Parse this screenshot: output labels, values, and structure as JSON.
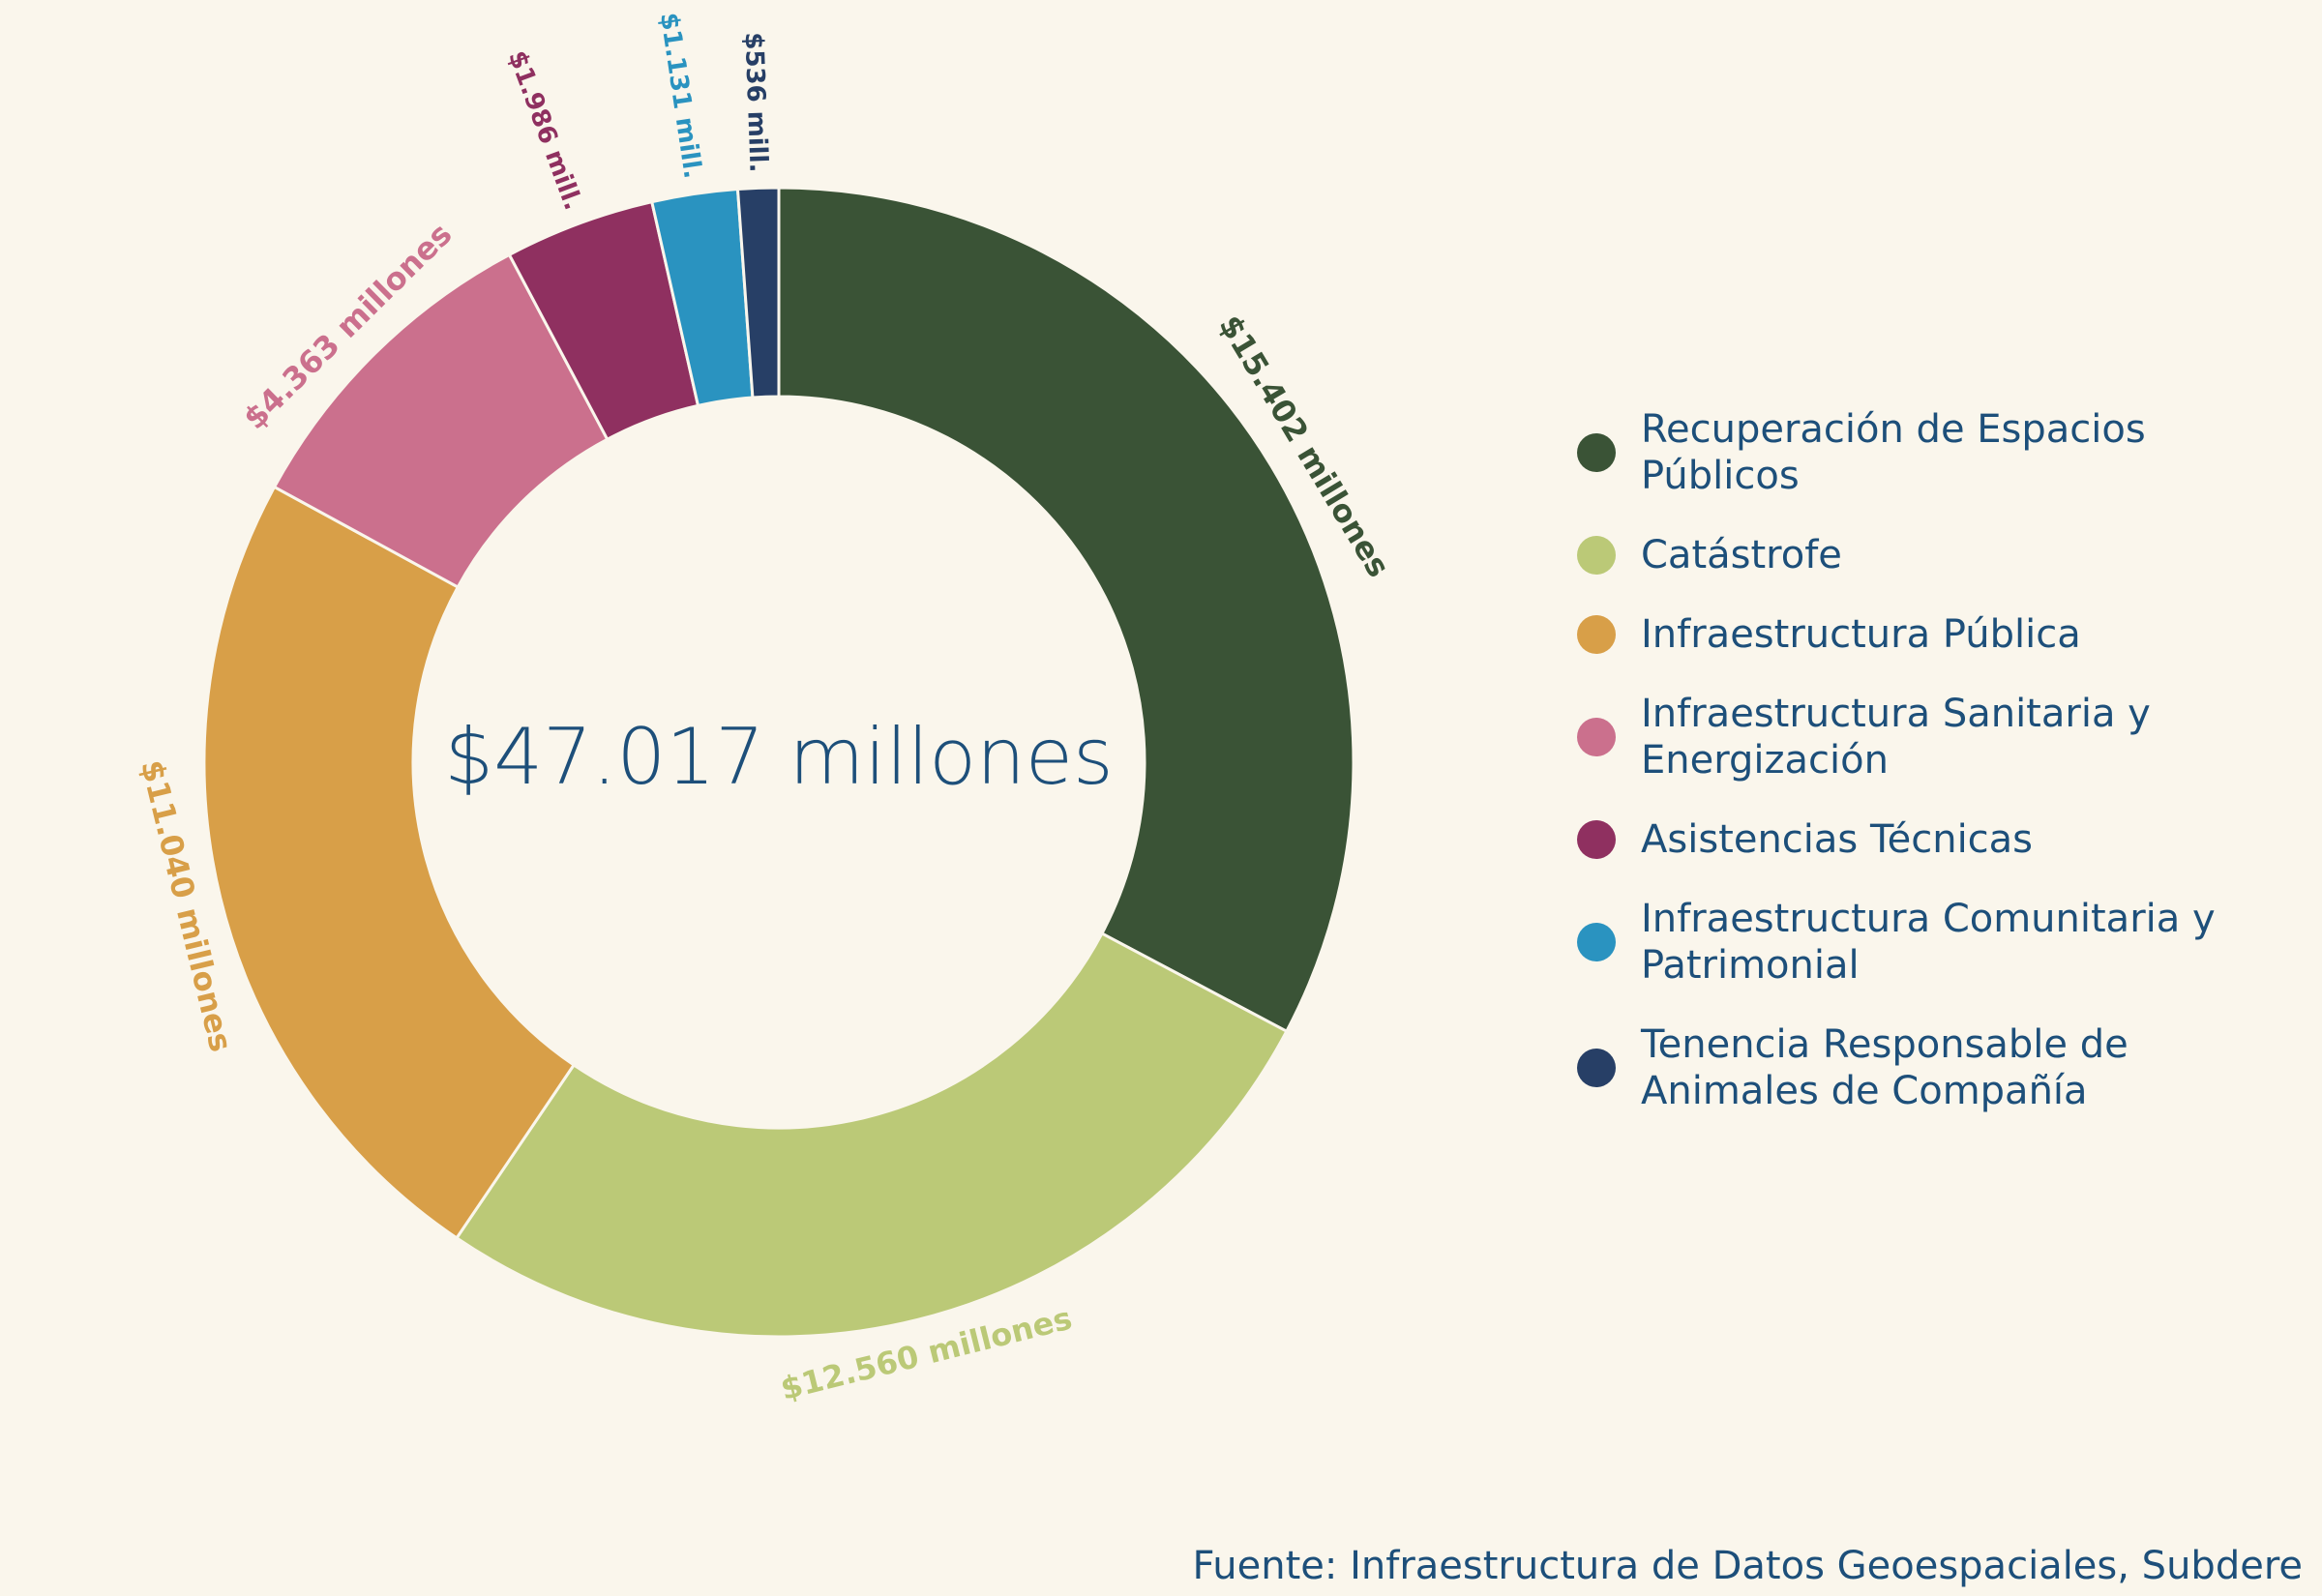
{
  "chart_data": {
    "type": "donut",
    "center_label": "$47.017 millones",
    "categories": [
      "Recuperación de Espacios Públicos",
      "Catástrofe",
      "Infraestructura Pública",
      "Infraestructura Sanitaria y Energización",
      "Asistencias Técnicas",
      "Infraestructura Comunitaria y Patrimonial",
      "Tenencia Responsable de Animales de Compañía"
    ],
    "values": [
      15402,
      12560,
      11040,
      4363,
      1986,
      1131,
      536
    ],
    "value_labels": [
      "$15.402 millones",
      "$12.560 millones",
      "$11.040 millones",
      "$4.363 millones",
      "$1.986 mill.",
      "$1.131 mill.",
      "$536 mill."
    ],
    "colors": [
      "#3a5336",
      "#bbc977",
      "#d89f48",
      "#cb708d",
      "#8f3060",
      "#2a93c0",
      "#273f66"
    ],
    "legend": "right",
    "source": "Fuente: Infraestructura de Datos Geoespaciales, Subdere"
  }
}
